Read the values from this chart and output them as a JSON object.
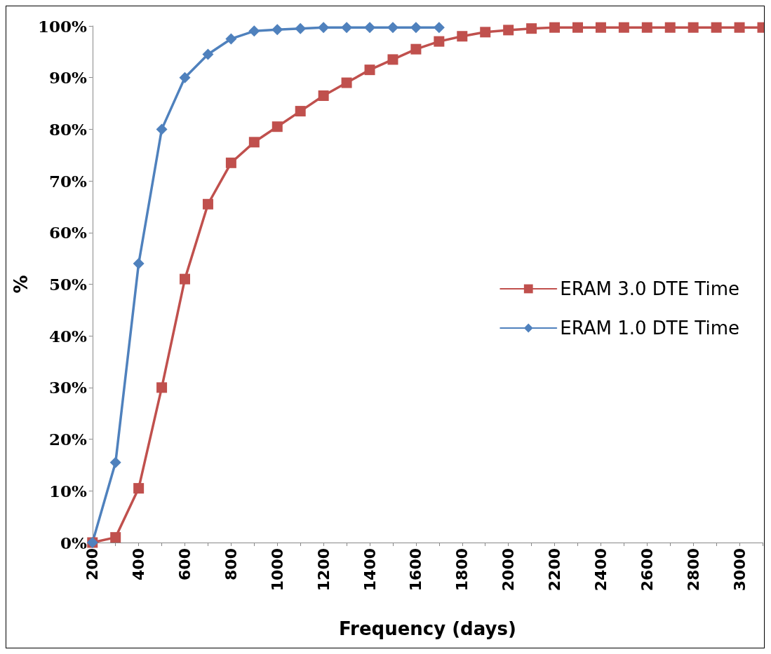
{
  "chart_data": {
    "type": "line",
    "xlabel": "Frequency (days)",
    "ylabel": "%",
    "categories": [
      "200",
      null,
      "400",
      null,
      "600",
      null,
      "800",
      null,
      "1000",
      null,
      "1200",
      null,
      "1400",
      null,
      "1600",
      null,
      "1800",
      null,
      "2000",
      null,
      "2200",
      null,
      "2400",
      null,
      "2600",
      null,
      "2800",
      null,
      "3000",
      null
    ],
    "series": [
      {
        "name": "ERAM 3.0 DTE Time",
        "color": "#c0504d",
        "marker": "square",
        "values": [
          0,
          1,
          10.5,
          30,
          51,
          65.5,
          73.5,
          77.5,
          80.5,
          83.5,
          86.5,
          89,
          91.5,
          93.5,
          95.5,
          97,
          98,
          98.8,
          99.2,
          99.5,
          99.7,
          99.7,
          99.7,
          99.7,
          99.7,
          99.7,
          99.7,
          99.7,
          99.7,
          99.7
        ]
      },
      {
        "name": "ERAM 1.0 DTE Time",
        "color": "#4f81bd",
        "marker": "diamond",
        "values": [
          0,
          15.5,
          54,
          80,
          90,
          94.5,
          97.5,
          99,
          99.3,
          99.5,
          99.7,
          99.7,
          99.7,
          99.7,
          99.7,
          99.7,
          null,
          null,
          null,
          null,
          null,
          null,
          null,
          null,
          null,
          null,
          null,
          null,
          null,
          null
        ]
      }
    ],
    "ylim": [
      0,
      100
    ],
    "yticks": [
      {
        "value": 0,
        "label": "0%"
      },
      {
        "value": 10,
        "label": "10%"
      },
      {
        "value": 20,
        "label": "20%"
      },
      {
        "value": 30,
        "label": "30%"
      },
      {
        "value": 40,
        "label": "40%"
      },
      {
        "value": 50,
        "label": "50%"
      },
      {
        "value": 60,
        "label": "60%"
      },
      {
        "value": 70,
        "label": "70%"
      },
      {
        "value": 80,
        "label": "80%"
      },
      {
        "value": 90,
        "label": "90%"
      },
      {
        "value": 100,
        "label": "100%"
      }
    ],
    "grid": false,
    "legend": "right",
    "line_style": "solid"
  }
}
